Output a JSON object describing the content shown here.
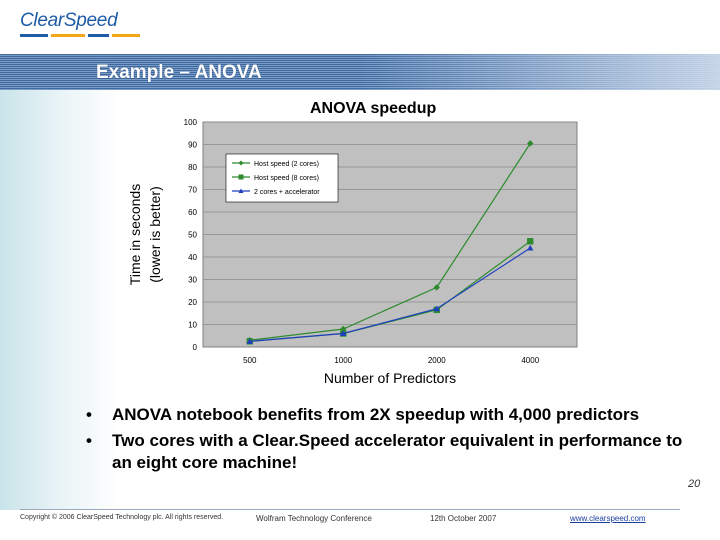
{
  "header": {
    "logo_text": "ClearSpeed",
    "logo_bar_colors": [
      "#1f5aa6",
      "#f2a516",
      "#1f5aa6",
      "#f2a516"
    ],
    "slide_title": "Example – ANOVA"
  },
  "chart_data": {
    "type": "line",
    "title": "ANOVA speedup",
    "xlabel": "Number of Predictors",
    "ylabel_line1": "Time in seconds",
    "ylabel_line2": "(lower is better)",
    "categories": [
      "500",
      "1000",
      "2000",
      "4000"
    ],
    "ylim": [
      0,
      100
    ],
    "yticks": [
      0,
      10,
      20,
      30,
      40,
      50,
      60,
      70,
      80,
      90,
      100
    ],
    "grid": true,
    "legend_position": "top-left",
    "series": [
      {
        "name": "Host speed (2 cores)",
        "values": [
          3,
          8,
          26.5,
          90.5
        ],
        "color": "#2e8b2e",
        "marker": "diamond"
      },
      {
        "name": "Host speed (8 cores)",
        "values": [
          2.5,
          6,
          16.5,
          47
        ],
        "color": "#2e8b2e",
        "marker": "square"
      },
      {
        "name": "2 cores + accelerator",
        "values": [
          2.5,
          6,
          17,
          44
        ],
        "color": "#1f3fbf",
        "marker": "triangle"
      }
    ]
  },
  "bullets": [
    "ANOVA notebook benefits from 2X speedup with 4,000 predictors",
    "Two cores with a Clear.Speed accelerator equivalent in performance to an eight core machine!"
  ],
  "bullet_symbol": "•",
  "footer": {
    "copyright": "Copyright © 2006 ClearSpeed Technology plc. All rights reserved.",
    "conference": "Wolfram Technology Conference",
    "date": "12th October 2007",
    "website": "www.clearspeed.com",
    "page_number": "20"
  }
}
